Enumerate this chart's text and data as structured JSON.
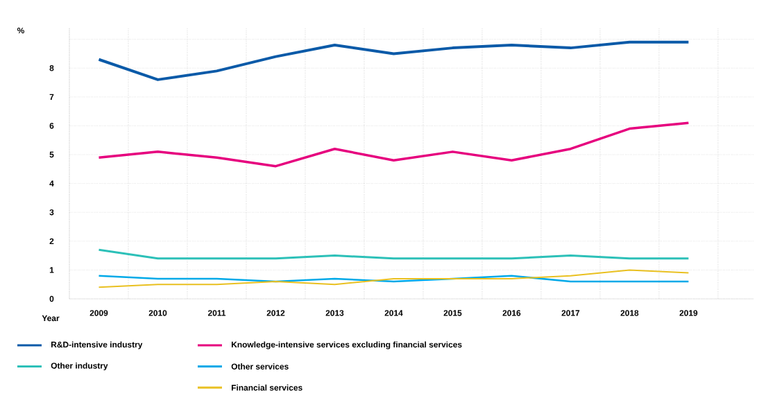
{
  "chart_data": {
    "type": "line",
    "xlabel": "Year",
    "ylabel": "%",
    "categories": [
      "2009",
      "2010",
      "2011",
      "2012",
      "2013",
      "2014",
      "2015",
      "2016",
      "2017",
      "2018",
      "2019"
    ],
    "ylim": [
      0,
      9.4
    ],
    "yticks": [
      0,
      1,
      2,
      3,
      4,
      5,
      6,
      7,
      8,
      {
        "value": 9,
        "label": null
      }
    ],
    "grid": true,
    "legend": "bottom",
    "marker": "none",
    "line_style": "solid",
    "series": [
      {
        "name": "R&D-intensive industry",
        "color": "#0a5aa8",
        "values": [
          8.3,
          7.6,
          7.9,
          8.4,
          8.8,
          8.5,
          8.7,
          8.8,
          8.7,
          8.9,
          8.9
        ]
      },
      {
        "name": "Knowledge-intensive services excluding financial services",
        "color": "#e6007e",
        "values": [
          4.9,
          5.1,
          4.9,
          4.6,
          5.2,
          4.8,
          5.1,
          4.8,
          5.2,
          5.9,
          6.1
        ]
      },
      {
        "name": "Other industry",
        "color": "#2cc0b8",
        "values": [
          1.7,
          1.4,
          1.4,
          1.4,
          1.5,
          1.4,
          1.4,
          1.4,
          1.5,
          1.4,
          1.4
        ]
      },
      {
        "name": "Other services",
        "color": "#00a9e8",
        "values": [
          0.8,
          0.7,
          0.7,
          0.6,
          0.7,
          0.6,
          0.7,
          0.8,
          0.6,
          0.6,
          0.6
        ]
      },
      {
        "name": "Financial services",
        "color": "#e9c020",
        "values": [
          0.4,
          0.5,
          0.5,
          0.6,
          0.5,
          0.7,
          0.7,
          0.7,
          0.8,
          1.0,
          0.9
        ]
      }
    ]
  }
}
